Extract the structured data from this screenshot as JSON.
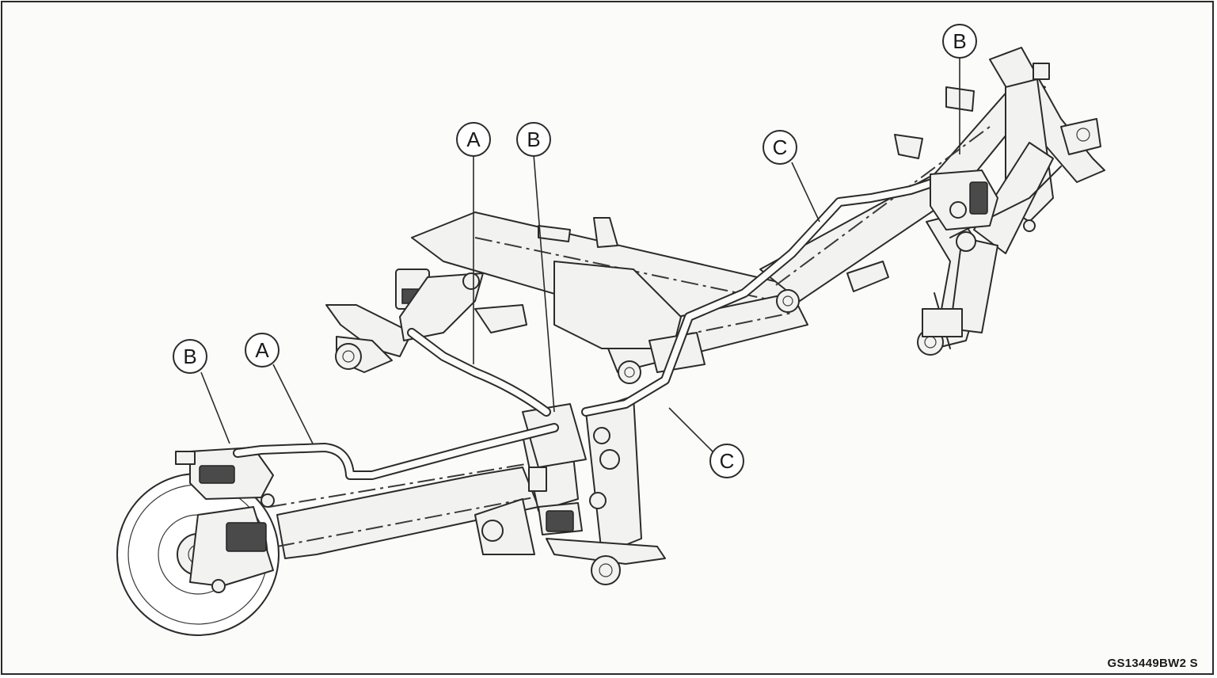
{
  "callouts": {
    "a_top": "A",
    "b_top": "B",
    "c_top": "C",
    "b_right": "B",
    "b_left": "B",
    "a_left": "A",
    "c_bottom": "C"
  },
  "figure_code": "GS13449BW2  S"
}
